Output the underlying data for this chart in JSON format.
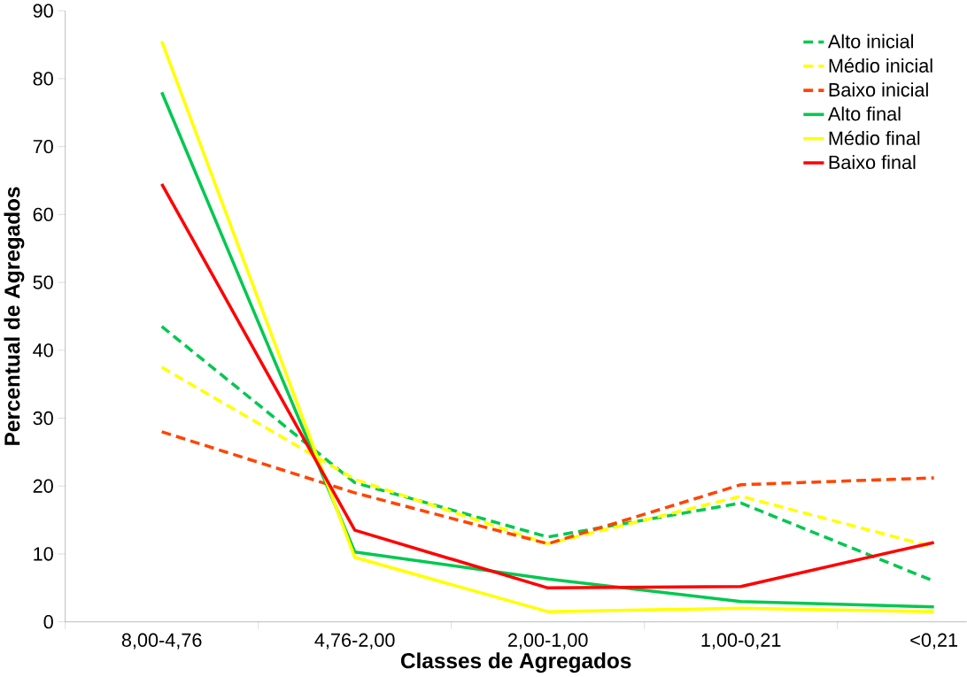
{
  "chart_data": {
    "type": "line",
    "xlabel": "Classes de Agregados",
    "ylabel": "Percentual de Agregados",
    "categories": [
      "8,00-4,76",
      "4,76-2,00",
      "2,00-1,00",
      "1,00-0,21",
      "<0,21"
    ],
    "ylim": [
      0,
      90
    ],
    "yticks": [
      0,
      10,
      20,
      30,
      40,
      50,
      60,
      70,
      80,
      90
    ],
    "legend": "top right",
    "grid": false,
    "marker": "none",
    "series": [
      {
        "name": "Alto inicial",
        "color": "#00c850",
        "line_style": "dashed",
        "values": [
          43.5,
          20.5,
          12.5,
          17.5,
          6
        ]
      },
      {
        "name": "Médio inicial",
        "color": "#ffff00",
        "line_style": "dashed",
        "values": [
          37.5,
          21,
          11.5,
          18.5,
          11
        ]
      },
      {
        "name": "Baixo inicial",
        "color": "#ff4500",
        "line_style": "dashed",
        "values": [
          28,
          19,
          11.5,
          20.2,
          21.2
        ]
      },
      {
        "name": "Alto final",
        "color": "#00c850",
        "line_style": "solid",
        "values": [
          78,
          10.3,
          6.3,
          3,
          2.2
        ]
      },
      {
        "name": "Médio final",
        "color": "#ffff00",
        "line_style": "solid",
        "values": [
          85.5,
          9.5,
          1.5,
          2,
          1.5
        ]
      },
      {
        "name": "Baixo final",
        "color": "#ff0000",
        "line_style": "solid",
        "values": [
          64.5,
          13.5,
          5,
          5.2,
          11.7
        ]
      }
    ]
  }
}
